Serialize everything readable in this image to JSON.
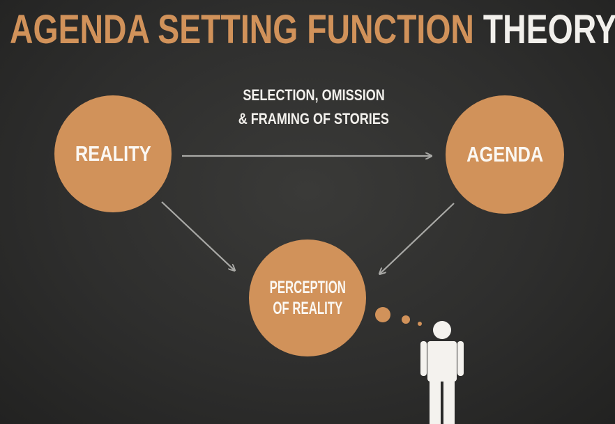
{
  "title": {
    "part1": "AGENDA SETTING FUNCTION",
    "part2": "THEORY"
  },
  "nodes": {
    "reality": "REALITY",
    "agenda": "AGENDA",
    "perception_line1": "PERCEPTION",
    "perception_line2": "OF REALITY"
  },
  "edge_label": {
    "line1": "SELECTION, OMISSION",
    "line2": "& FRAMING OF STORIES"
  },
  "colors": {
    "accent": "#d1925a",
    "background": "#2f2f2f",
    "arrow": "#a9a9a6",
    "text_light": "#f2f0ec"
  },
  "icons": [
    "person-icon",
    "thought-bubble-icon"
  ]
}
